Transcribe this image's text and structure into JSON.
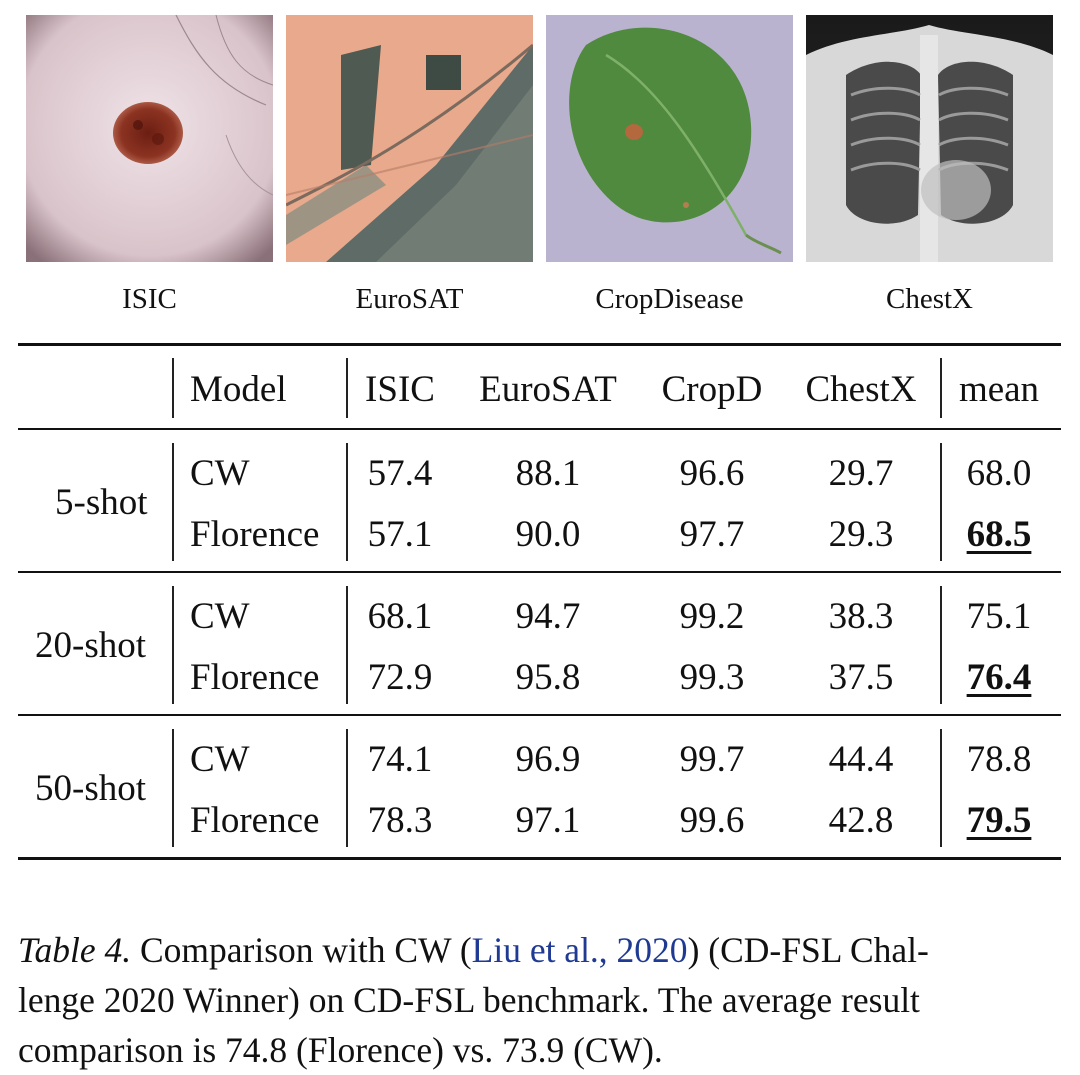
{
  "figure": {
    "images": [
      {
        "label": "ISIC",
        "icon": "skin-lesion-image"
      },
      {
        "label": "EuroSAT",
        "icon": "satellite-image"
      },
      {
        "label": "CropDisease",
        "icon": "leaf-image"
      },
      {
        "label": "ChestX",
        "icon": "chest-xray-image"
      }
    ]
  },
  "table": {
    "headers": [
      "Model",
      "ISIC",
      "EuroSAT",
      "CropD",
      "ChestX",
      "mean"
    ],
    "groups": [
      {
        "label": "5-shot",
        "rows": [
          {
            "model": "CW",
            "values": [
              "57.4",
              "88.1",
              "96.6",
              "29.7",
              "68.0"
            ],
            "best": false
          },
          {
            "model": "Florence",
            "values": [
              "57.1",
              "90.0",
              "97.7",
              "29.3",
              "68.5"
            ],
            "best": true
          }
        ]
      },
      {
        "label": "20-shot",
        "rows": [
          {
            "model": "CW",
            "values": [
              "68.1",
              "94.7",
              "99.2",
              "38.3",
              "75.1"
            ],
            "best": false
          },
          {
            "model": "Florence",
            "values": [
              "72.9",
              "95.8",
              "99.3",
              "37.5",
              "76.4"
            ],
            "best": true
          }
        ]
      },
      {
        "label": "50-shot",
        "rows": [
          {
            "model": "CW",
            "values": [
              "74.1",
              "96.9",
              "99.7",
              "44.4",
              "78.8"
            ],
            "best": false
          },
          {
            "model": "Florence",
            "values": [
              "78.3",
              "97.1",
              "99.6",
              "42.8",
              "79.5"
            ],
            "best": true
          }
        ]
      }
    ]
  },
  "caption": {
    "tag": "Table 4.",
    "text_before": " Comparison with CW (",
    "citation": "Liu et al., 2020",
    "text_after": ") (CD-FSL Chal-",
    "line2": "lenge 2020 Winner) on CD-FSL benchmark. The average result",
    "line3": "comparison is 74.8 (Florence) vs. 73.9 (CW)."
  },
  "colors": {
    "citation": "#1f3a93",
    "rule": "#111111"
  }
}
